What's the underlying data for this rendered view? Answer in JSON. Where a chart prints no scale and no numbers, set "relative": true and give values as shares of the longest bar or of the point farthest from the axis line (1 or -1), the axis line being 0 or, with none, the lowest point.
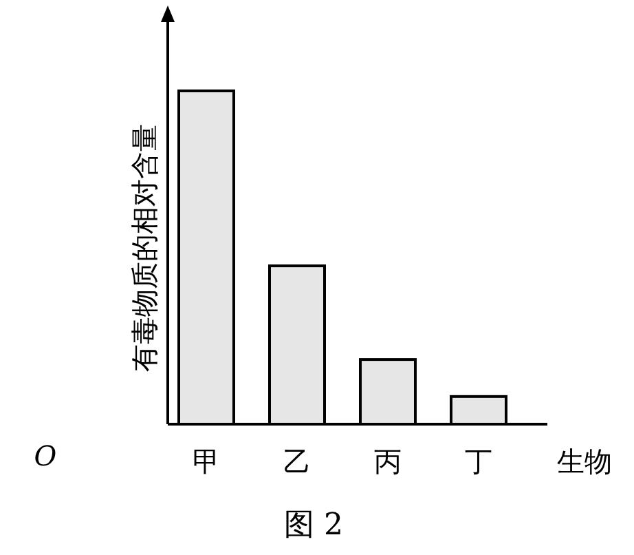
{
  "chart_data": {
    "type": "bar",
    "relative": true,
    "title": "图 2",
    "xlabel": "生物",
    "ylabel": "有毒物质的相对含量",
    "categories": [
      "甲",
      "乙",
      "丙",
      "丁"
    ],
    "values": [
      1,
      0.475,
      0.194,
      0.083
    ],
    "color": "#e6e6e6",
    "annotations": [
      "O"
    ]
  }
}
